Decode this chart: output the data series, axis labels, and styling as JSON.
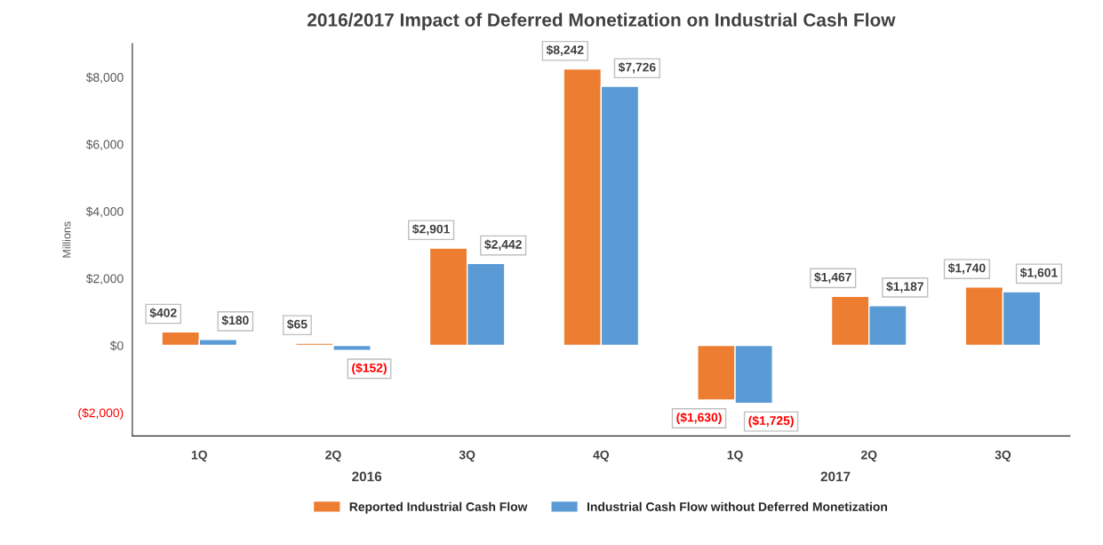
{
  "chart_data": {
    "type": "bar",
    "title": "2016/2017 Impact of Deferred Monetization on Industrial Cash Flow",
    "ylabel": "Millions",
    "categories": [
      "1Q",
      "2Q",
      "3Q",
      "4Q",
      "1Q",
      "2Q",
      "3Q"
    ],
    "series": [
      {
        "name": "Reported Industrial Cash Flow",
        "color": "#ed7d31",
        "values": [
          402,
          65,
          2901,
          8242,
          -1630,
          1467,
          1740
        ],
        "value_labels": [
          "$402",
          "$65",
          "$2,901",
          "$8,242",
          "($1,630)",
          "$1,467",
          "$1,740"
        ]
      },
      {
        "name": "Industrial Cash Flow without Deferred Monetization",
        "color": "#5b9bd5",
        "values": [
          180,
          -152,
          2442,
          7726,
          -1725,
          1187,
          1601
        ],
        "value_labels": [
          "$180",
          "($152)",
          "$2,442",
          "$7,726",
          "($1,725)",
          "$1,187",
          "$1,601"
        ]
      }
    ],
    "ylim": [
      -2700,
      9000
    ],
    "yticks": [
      {
        "value": -2000,
        "label": "($2,000)"
      },
      {
        "value": 0,
        "label": "$0"
      },
      {
        "value": 2000,
        "label": "$2,000"
      },
      {
        "value": 4000,
        "label": "$4,000"
      },
      {
        "value": 6000,
        "label": "$6,000"
      },
      {
        "value": 8000,
        "label": "$8,000"
      }
    ],
    "annotations": [
      "2016",
      "2017"
    ],
    "grid": false,
    "legend": "bottom"
  }
}
